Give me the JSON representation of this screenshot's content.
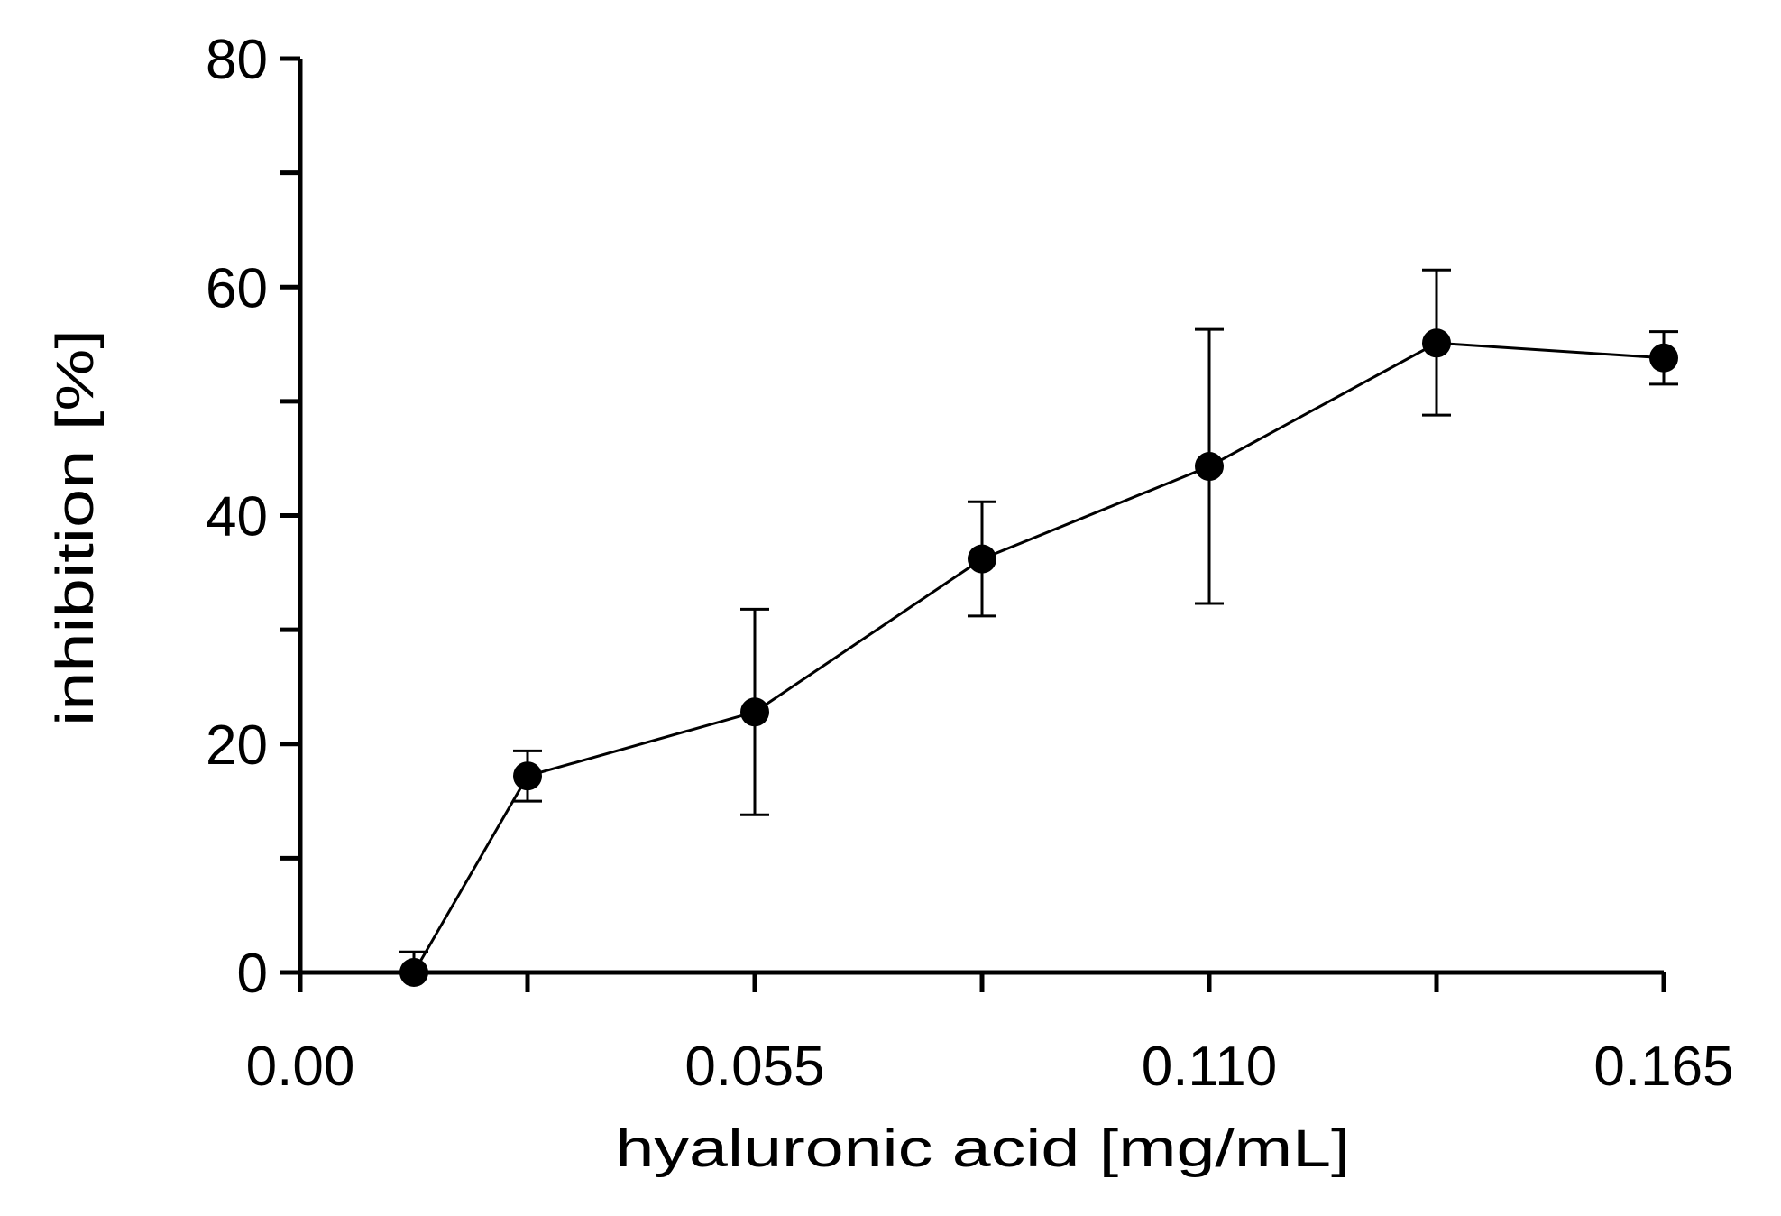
{
  "chart_data": {
    "type": "line",
    "title": "",
    "xlabel": "hyaluronic acid [mg/mL]",
    "ylabel": "inhibition [%]",
    "xlim": [
      0,
      0.165
    ],
    "ylim": [
      0,
      80
    ],
    "x_ticks": [
      0,
      0.0275,
      0.055,
      0.0825,
      0.11,
      0.1375,
      0.165
    ],
    "x_tick_labels": [
      "0.00",
      "",
      "0.055",
      "",
      "0.110",
      "",
      "0.165"
    ],
    "y_ticks": [
      0,
      10,
      20,
      30,
      40,
      50,
      60,
      70,
      80
    ],
    "y_tick_labels": [
      "0",
      "",
      "20",
      "",
      "40",
      "",
      "60",
      "",
      "80"
    ],
    "grid": false,
    "legend": "none",
    "series": [
      {
        "color": "#000000",
        "marker": "circle",
        "points": [
          {
            "x": 0.01375,
            "y": 0.0,
            "err_low": 0.0,
            "err_high": 1.8
          },
          {
            "x": 0.0275,
            "y": 17.2,
            "err_low": 15.0,
            "err_high": 19.4
          },
          {
            "x": 0.055,
            "y": 22.8,
            "err_low": 13.8,
            "err_high": 31.8
          },
          {
            "x": 0.0825,
            "y": 36.2,
            "err_low": 31.2,
            "err_high": 41.2
          },
          {
            "x": 0.11,
            "y": 44.3,
            "err_low": 32.3,
            "err_high": 56.3
          },
          {
            "x": 0.1375,
            "y": 55.1,
            "err_low": 48.8,
            "err_high": 61.5
          },
          {
            "x": 0.165,
            "y": 53.8,
            "err_low": 51.5,
            "err_high": 56.1
          }
        ]
      }
    ]
  }
}
